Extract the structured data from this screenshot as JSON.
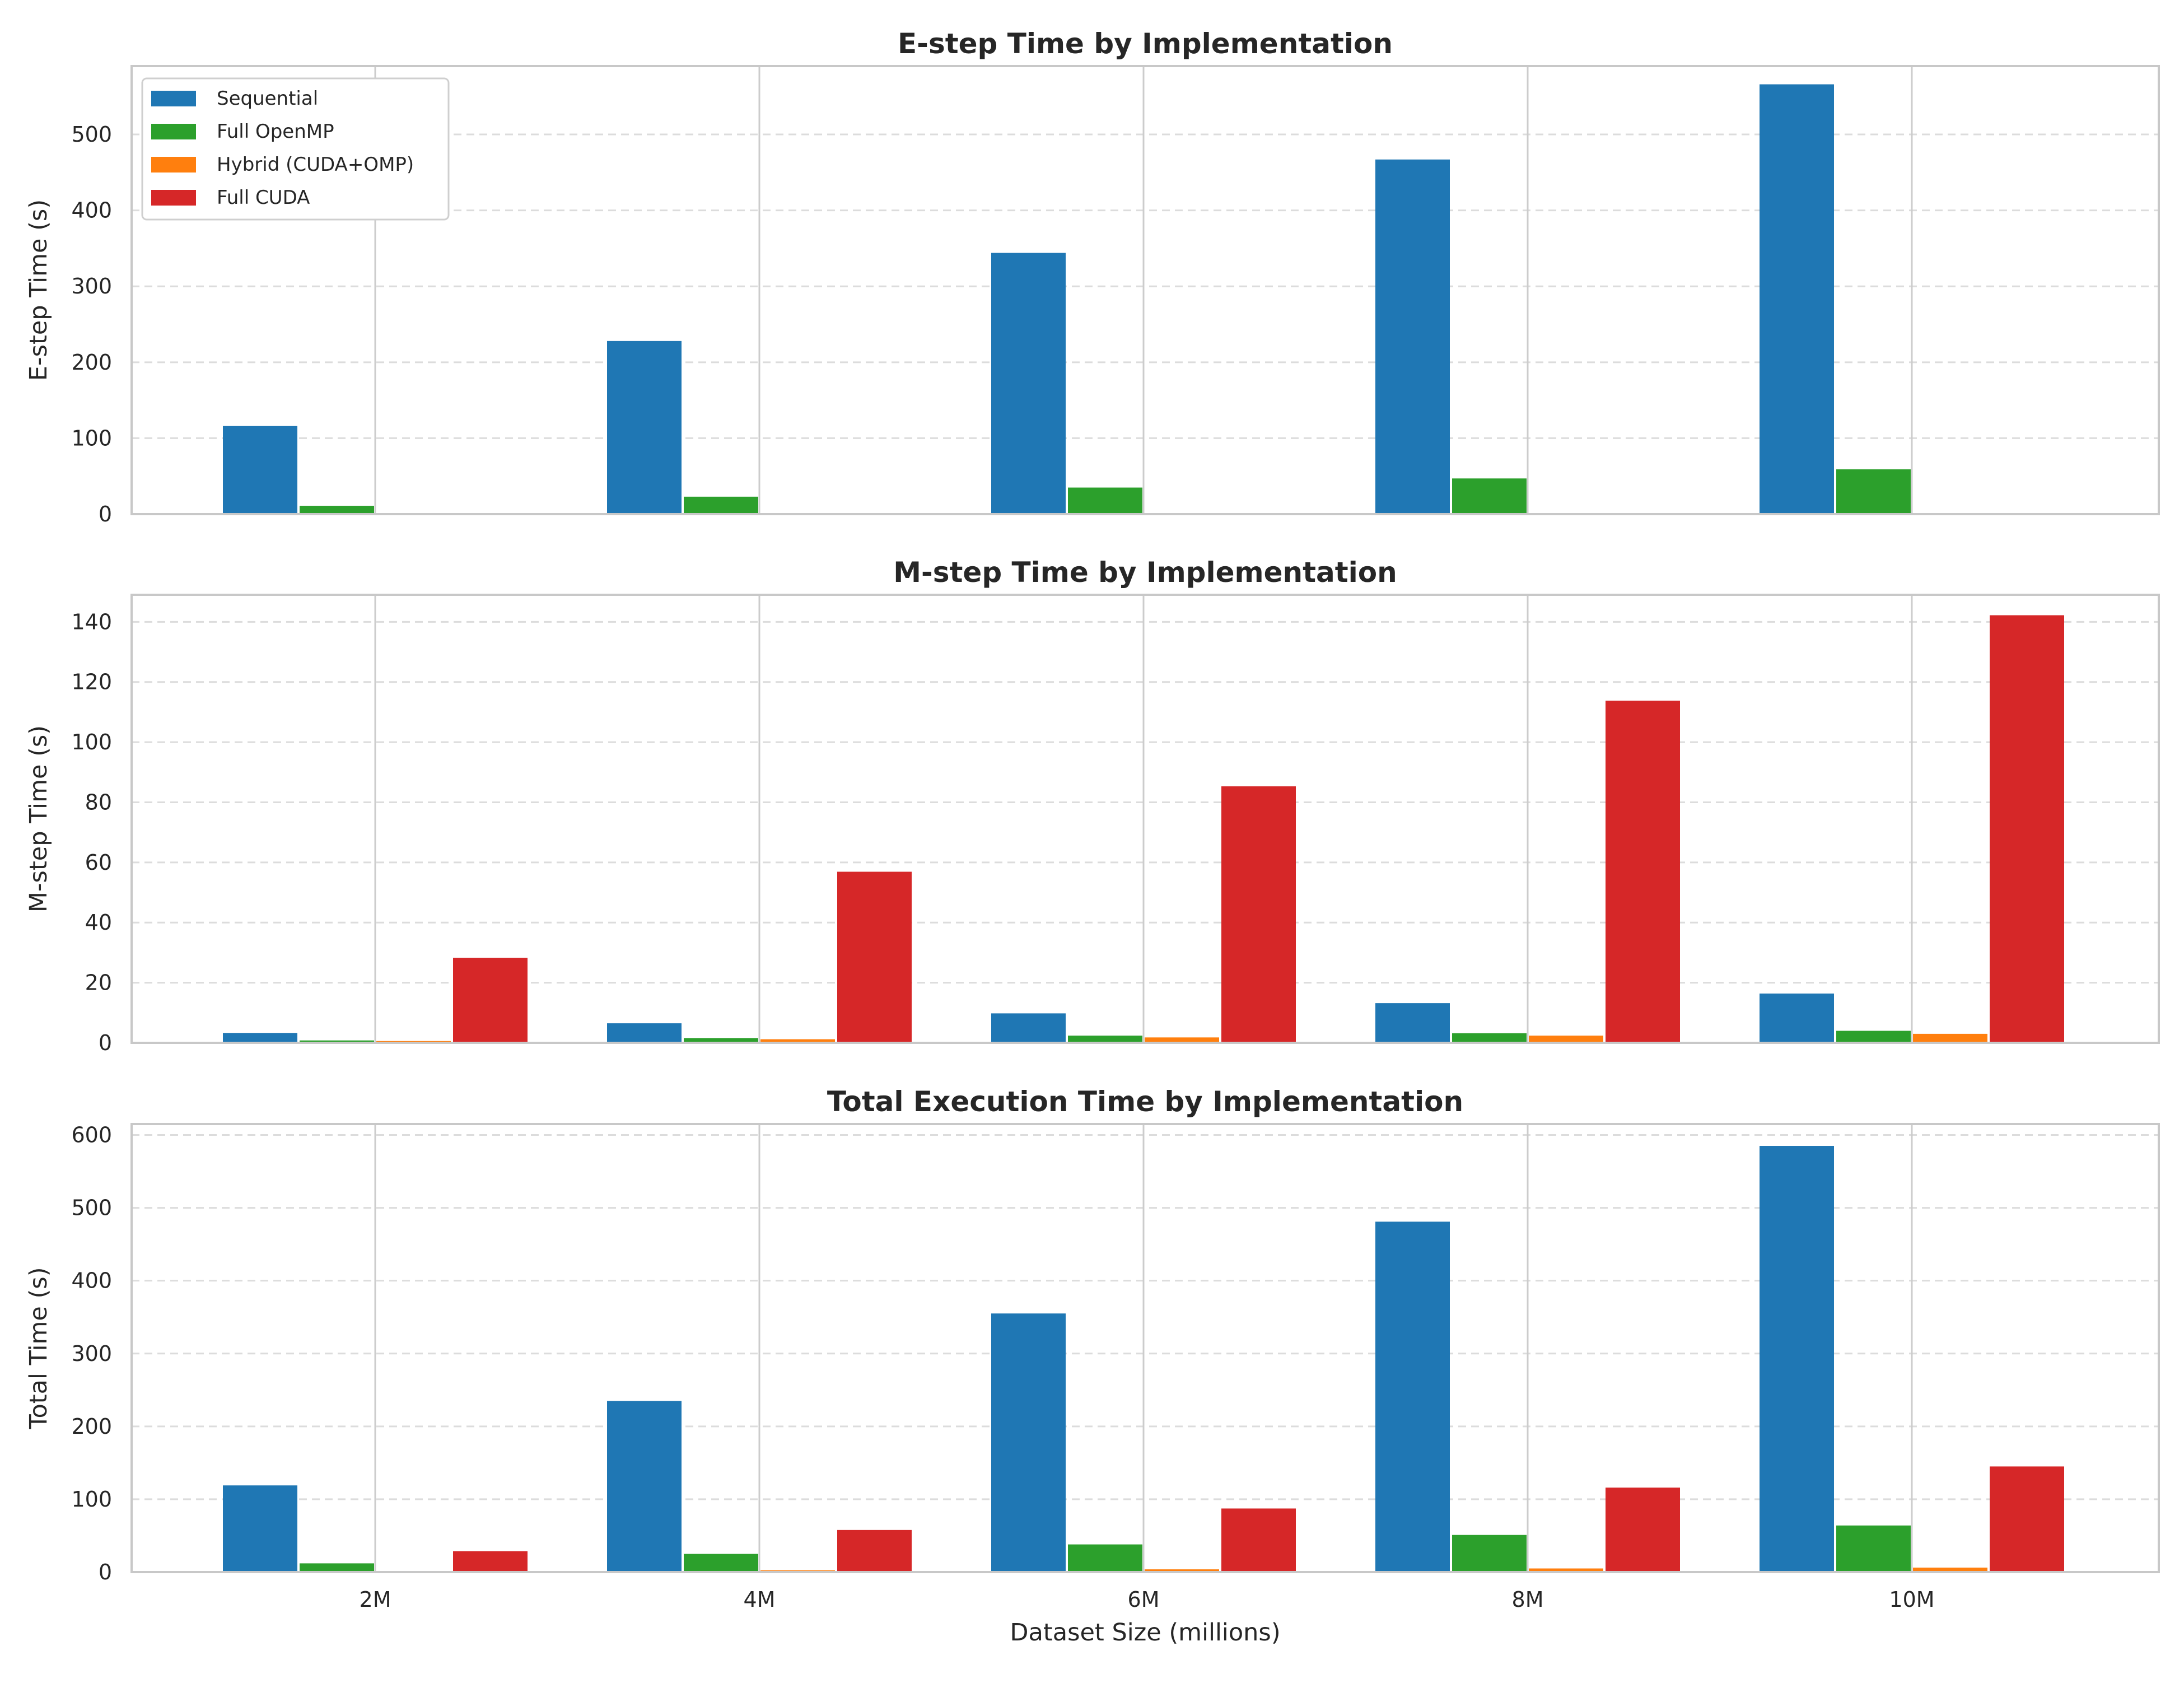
{
  "chart_data": [
    {
      "type": "bar",
      "title": "E-step Time by Implementation",
      "ylabel": "E-step Time (s)",
      "xlabel": "",
      "categories": [
        "2M",
        "4M",
        "6M",
        "8M",
        "10M"
      ],
      "ylim": [
        0,
        590
      ],
      "yticks": [
        0,
        100,
        200,
        300,
        400,
        500
      ],
      "grid": "y-dashed",
      "legend": "top-left",
      "series": [
        {
          "name": "Sequential",
          "color": "#1f77b4",
          "values": [
            116,
            228,
            344,
            467,
            566
          ]
        },
        {
          "name": "Full OpenMP",
          "color": "#2ca02c",
          "values": [
            11,
            23,
            35,
            47,
            59
          ]
        },
        {
          "name": "Hybrid (CUDA+OMP)",
          "color": "#ff7f0e",
          "values": [
            0,
            0,
            0,
            0,
            0
          ]
        },
        {
          "name": "Full CUDA",
          "color": "#d62728",
          "values": [
            0,
            0,
            0,
            0,
            0
          ]
        }
      ]
    },
    {
      "type": "bar",
      "title": "M-step Time by Implementation",
      "ylabel": "M-step Time (s)",
      "xlabel": "",
      "categories": [
        "2M",
        "4M",
        "6M",
        "8M",
        "10M"
      ],
      "ylim": [
        0,
        149
      ],
      "yticks": [
        0,
        20,
        40,
        60,
        80,
        100,
        120,
        140
      ],
      "grid": "y-dashed",
      "series": [
        {
          "name": "Sequential",
          "color": "#1f77b4",
          "values": [
            3.3,
            6.5,
            9.8,
            13.2,
            16.4
          ]
        },
        {
          "name": "Full OpenMP",
          "color": "#2ca02c",
          "values": [
            0.8,
            1.6,
            2.4,
            3.2,
            4.0
          ]
        },
        {
          "name": "Hybrid (CUDA+OMP)",
          "color": "#ff7f0e",
          "values": [
            0.6,
            1.2,
            1.8,
            2.4,
            3.0
          ]
        },
        {
          "name": "Full CUDA",
          "color": "#d62728",
          "values": [
            28.3,
            56.9,
            85.3,
            113.8,
            142.2
          ]
        }
      ]
    },
    {
      "type": "bar",
      "title": "Total Execution Time by Implementation",
      "ylabel": "Total Time (s)",
      "xlabel": "Dataset Size (millions)",
      "categories": [
        "2M",
        "4M",
        "6M",
        "8M",
        "10M"
      ],
      "ylim": [
        0,
        615
      ],
      "yticks": [
        0,
        100,
        200,
        300,
        400,
        500,
        600
      ],
      "grid": "y-dashed",
      "series": [
        {
          "name": "Sequential",
          "color": "#1f77b4",
          "values": [
            119,
            235,
            355,
            481,
            585
          ]
        },
        {
          "name": "Full OpenMP",
          "color": "#2ca02c",
          "values": [
            12,
            25,
            38,
            51,
            64
          ]
        },
        {
          "name": "Hybrid (CUDA+OMP)",
          "color": "#ff7f0e",
          "values": [
            1.2,
            2.5,
            3.8,
            5.0,
            6.2
          ]
        },
        {
          "name": "Full CUDA",
          "color": "#d62728",
          "values": [
            28.8,
            57.8,
            87.3,
            116,
            145
          ]
        }
      ]
    }
  ]
}
